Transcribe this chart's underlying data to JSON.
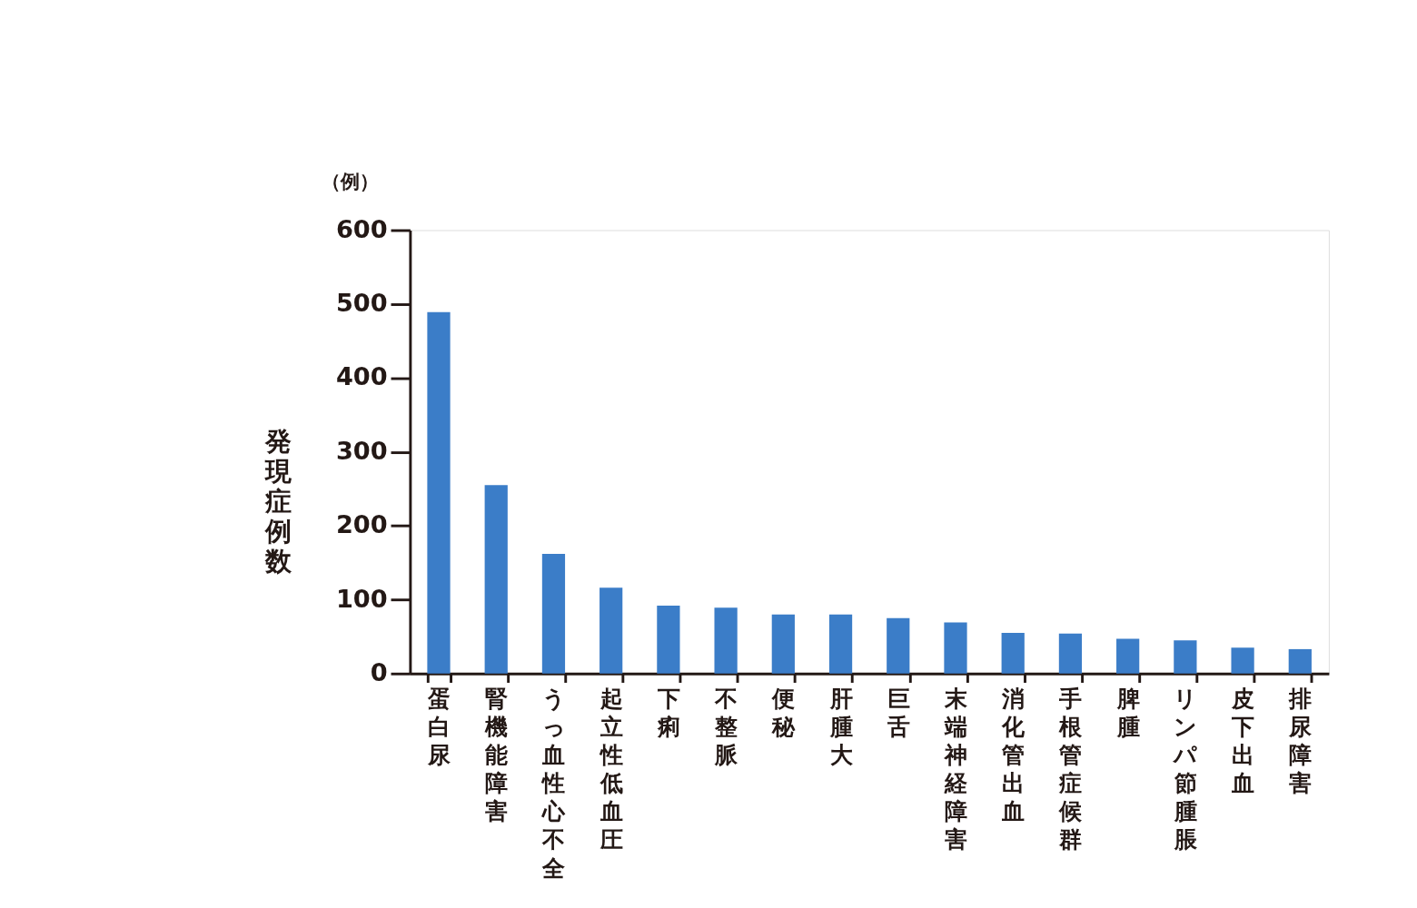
{
  "chart_data": {
    "type": "bar",
    "ylabel": "発現症例数",
    "annotations": [
      "（例）"
    ],
    "categories": [
      "蛋白尿",
      "腎機能障害",
      "うっ血性心不全",
      "起立性低血圧",
      "下痢",
      "不整脈",
      "便秘",
      "肝腫大",
      "巨舌",
      "末端神経障害",
      "消化管出血",
      "手根管症候群",
      "脾腫",
      "リンパ節腫脹",
      "皮下出血",
      "排尿障害"
    ],
    "values": [
      489,
      255,
      162,
      116,
      92,
      89,
      80,
      80,
      75,
      69,
      55,
      54,
      47,
      45,
      35,
      33
    ],
    "color": "#3b7dc8",
    "ylim": [
      0,
      600
    ],
    "yticks": [
      0,
      100,
      200,
      300,
      400,
      500,
      600
    ],
    "grid": false
  }
}
